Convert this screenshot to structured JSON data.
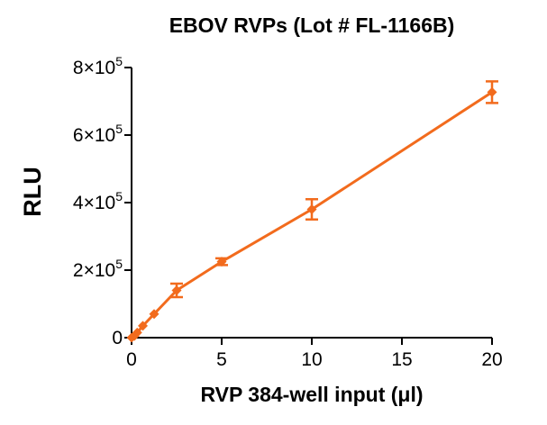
{
  "chart_data": {
    "type": "line",
    "title": "EBOV RVPs (Lot # FL-1166B)",
    "xlabel": "RVP 384-well input (μl)",
    "ylabel": "RLU",
    "xlim": [
      0,
      20
    ],
    "ylim": [
      0,
      800000
    ],
    "xticks": [
      0,
      5,
      10,
      15,
      20
    ],
    "xtick_labels": [
      "0",
      "5",
      "10",
      "15",
      "20"
    ],
    "yticks": [
      0,
      200000,
      400000,
      600000,
      800000
    ],
    "ytick_labels": [
      {
        "base": "0",
        "exp": ""
      },
      {
        "base": "2×10",
        "exp": "5"
      },
      {
        "base": "4×10",
        "exp": "5"
      },
      {
        "base": "6×10",
        "exp": "5"
      },
      {
        "base": "8×10",
        "exp": "5"
      }
    ],
    "grid": false,
    "color": "#f26b1d",
    "series": [
      {
        "x": [
          0,
          0.156,
          0.3125,
          0.625,
          1.25,
          2.5,
          5,
          10,
          20
        ],
        "y": [
          0,
          5000,
          15000,
          35000,
          70000,
          140000,
          225000,
          380000,
          727000
        ],
        "error": [
          1000,
          2000,
          4000,
          6000,
          8000,
          20000,
          10000,
          30000,
          32000
        ]
      }
    ]
  }
}
